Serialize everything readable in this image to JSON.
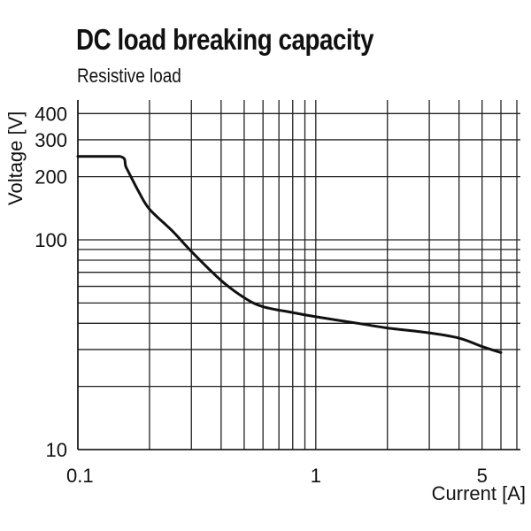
{
  "chart_data": {
    "type": "line",
    "title": "DC load breaking capacity",
    "subtitle": "Resistive load",
    "xlabel": "Current [A]",
    "ylabel": "Voltage [V]",
    "xscale": "log",
    "yscale": "log",
    "xlim": [
      0.1,
      7
    ],
    "ylim": [
      10,
      400
    ],
    "x_ticks": [
      0.1,
      1,
      5
    ],
    "x_tick_labels": [
      "0.1",
      "1",
      "5"
    ],
    "y_ticks": [
      10,
      100,
      200,
      300,
      400
    ],
    "y_tick_labels": [
      "10",
      "100",
      "200",
      "300",
      "400"
    ],
    "x_gridlines": [
      0.1,
      0.2,
      0.3,
      0.4,
      0.5,
      0.6,
      0.7,
      0.8,
      0.9,
      1,
      2,
      3,
      4,
      5,
      6,
      7
    ],
    "y_gridlines": [
      10,
      20,
      30,
      40,
      50,
      60,
      70,
      80,
      90,
      100,
      200,
      300,
      400
    ],
    "grid": true,
    "series": [
      {
        "color": "#111111",
        "x": [
          0.1,
          0.15,
          0.16,
          0.18,
          0.2,
          0.25,
          0.3,
          0.4,
          0.5,
          0.6,
          0.8,
          1,
          1.5,
          2,
          3,
          4,
          5,
          6
        ],
        "y": [
          250,
          250,
          220,
          170,
          140,
          110,
          88,
          64,
          53,
          48,
          45,
          43,
          40,
          38,
          36,
          34,
          31,
          29
        ]
      }
    ]
  }
}
